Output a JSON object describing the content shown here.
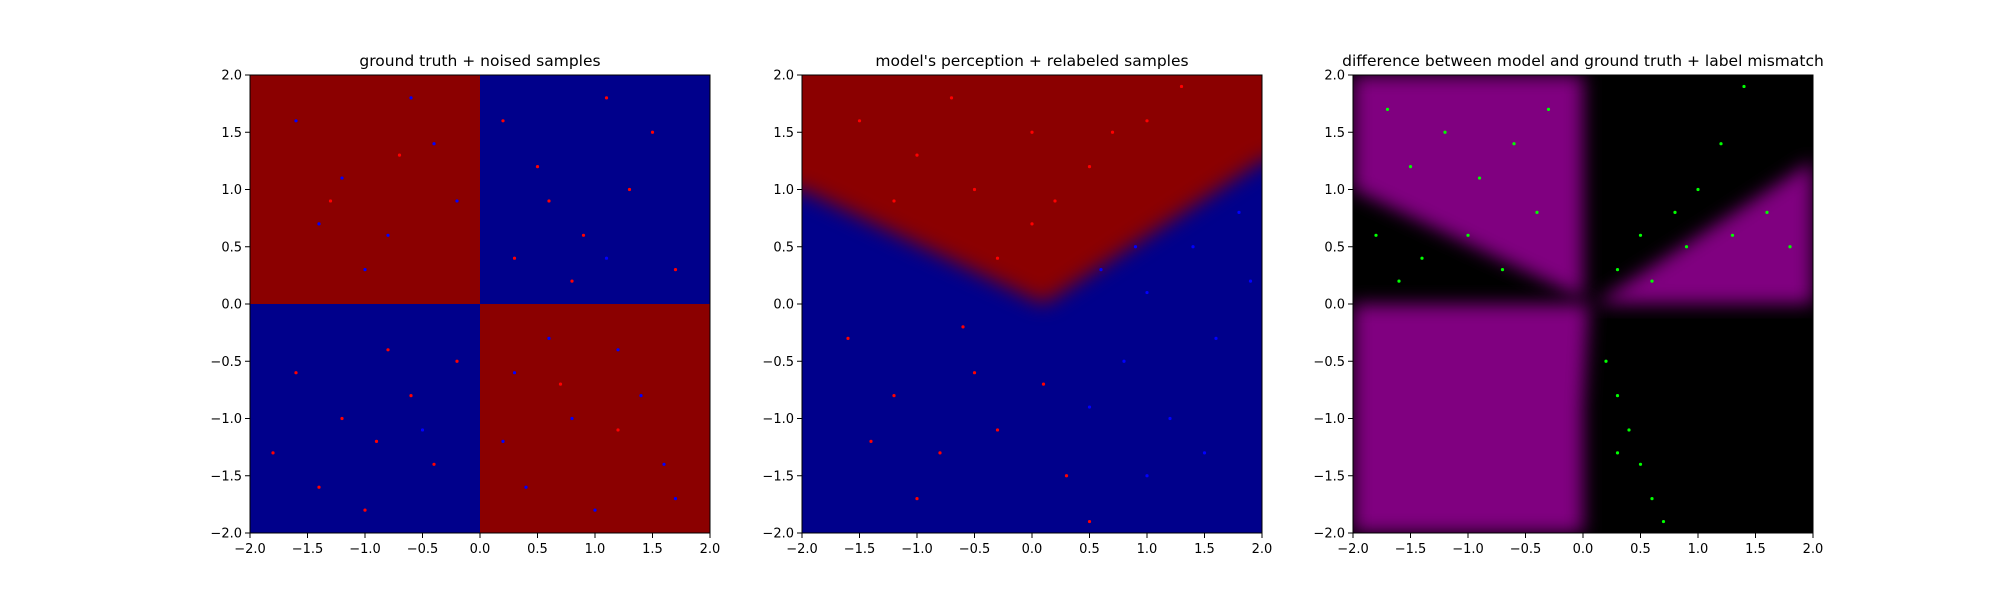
{
  "chart_data": [
    {
      "type": "scatter",
      "title": "ground truth + noised samples",
      "xlim": [
        -2.0,
        2.0
      ],
      "ylim": [
        -2.0,
        2.0
      ],
      "xticks": [
        "−2.0",
        "−1.5",
        "−1.0",
        "−0.5",
        "0.0",
        "0.5",
        "1.0",
        "1.5",
        "2.0"
      ],
      "yticks": [
        "−2.0",
        "−1.5",
        "−1.0",
        "−0.5",
        "0.0",
        "0.5",
        "1.0",
        "1.5",
        "2.0"
      ],
      "background": {
        "kind": "quadrants",
        "regions": [
          {
            "x": [
              -2.0,
              0.0
            ],
            "y": [
              0.0,
              2.0
            ],
            "color": "#8b0000"
          },
          {
            "x": [
              0.0,
              2.0
            ],
            "y": [
              0.0,
              2.0
            ],
            "color": "#00008b"
          },
          {
            "x": [
              -2.0,
              0.0
            ],
            "y": [
              -2.0,
              0.0
            ],
            "color": "#00008b"
          },
          {
            "x": [
              0.0,
              2.0
            ],
            "y": [
              -2.0,
              0.0
            ],
            "color": "#8b0000"
          }
        ]
      },
      "series": [
        {
          "color": "#ff0000",
          "points": [
            [
              0.2,
              1.6
            ],
            [
              0.5,
              1.2
            ],
            [
              0.9,
              0.6
            ],
            [
              1.3,
              1.0
            ],
            [
              1.7,
              0.3
            ],
            [
              0.3,
              0.4
            ],
            [
              1.1,
              1.8
            ],
            [
              0.6,
              0.9
            ],
            [
              1.5,
              1.5
            ],
            [
              0.8,
              0.2
            ],
            [
              -1.6,
              -0.6
            ],
            [
              -1.2,
              -1.0
            ],
            [
              -0.8,
              -0.4
            ],
            [
              -0.4,
              -1.4
            ],
            [
              -1.0,
              -1.8
            ],
            [
              -0.6,
              -0.8
            ],
            [
              -1.4,
              -1.6
            ],
            [
              -0.2,
              -0.5
            ],
            [
              -1.8,
              -1.3
            ],
            [
              -0.9,
              -1.2
            ],
            [
              -1.3,
              0.9
            ],
            [
              -0.7,
              1.3
            ],
            [
              0.7,
              -0.7
            ],
            [
              1.2,
              -1.1
            ]
          ]
        },
        {
          "color": "#0000ff",
          "points": [
            [
              -1.6,
              1.6
            ],
            [
              -1.2,
              1.1
            ],
            [
              -0.8,
              0.6
            ],
            [
              -0.4,
              1.4
            ],
            [
              -1.0,
              0.3
            ],
            [
              -0.6,
              1.8
            ],
            [
              -1.4,
              0.7
            ],
            [
              -0.2,
              0.9
            ],
            [
              0.4,
              -1.6
            ],
            [
              0.8,
              -1.0
            ],
            [
              1.2,
              -0.4
            ],
            [
              1.6,
              -1.4
            ],
            [
              0.3,
              -0.6
            ],
            [
              1.0,
              -1.8
            ],
            [
              1.4,
              -0.8
            ],
            [
              0.6,
              -0.3
            ],
            [
              1.7,
              -1.7
            ],
            [
              0.2,
              -1.2
            ],
            [
              1.1,
              0.4
            ],
            [
              -0.5,
              -1.1
            ]
          ]
        }
      ]
    },
    {
      "type": "scatter",
      "title": "model's perception + relabeled samples",
      "xlim": [
        -2.0,
        2.0
      ],
      "ylim": [
        -2.0,
        2.0
      ],
      "xticks": [
        "−2.0",
        "−1.5",
        "−1.0",
        "−0.5",
        "0.0",
        "0.5",
        "1.0",
        "1.5",
        "2.0"
      ],
      "yticks": [
        "−2.0",
        "−1.5",
        "−1.0",
        "−0.5",
        "0.0",
        "0.5",
        "1.0",
        "1.5",
        "2.0"
      ],
      "background": {
        "kind": "wedge",
        "boundary": [
          [
            -2.0,
            1.0
          ],
          [
            0.1,
            0.0
          ],
          [
            2.0,
            1.25
          ]
        ],
        "inside_color": "#8b0000",
        "outside_color": "#00008b"
      },
      "series": [
        {
          "color": "#ff0000",
          "points": [
            [
              -1.5,
              1.6
            ],
            [
              -1.0,
              1.3
            ],
            [
              -0.5,
              1.0
            ],
            [
              0.0,
              0.7
            ],
            [
              0.5,
              1.2
            ],
            [
              1.0,
              1.6
            ],
            [
              -0.3,
              0.4
            ],
            [
              0.2,
              0.9
            ],
            [
              -0.7,
              1.8
            ],
            [
              0.7,
              1.5
            ],
            [
              -1.2,
              0.9
            ],
            [
              1.3,
              1.9
            ],
            [
              0.0,
              1.5
            ],
            [
              -1.6,
              -0.3
            ],
            [
              -1.2,
              -0.8
            ],
            [
              -0.8,
              -1.3
            ],
            [
              -0.5,
              -0.6
            ],
            [
              -1.0,
              -1.7
            ],
            [
              -0.3,
              -1.1
            ],
            [
              0.1,
              -0.7
            ],
            [
              -0.6,
              -0.2
            ],
            [
              0.3,
              -1.5
            ],
            [
              -1.4,
              -1.2
            ],
            [
              0.5,
              -1.9
            ]
          ]
        },
        {
          "color": "#0000ff",
          "points": [
            [
              0.6,
              0.3
            ],
            [
              1.0,
              0.1
            ],
            [
              1.4,
              0.5
            ],
            [
              1.8,
              0.8
            ],
            [
              0.8,
              -0.5
            ],
            [
              1.2,
              -1.0
            ],
            [
              1.6,
              -0.3
            ],
            [
              0.5,
              -0.9
            ],
            [
              1.0,
              -1.5
            ],
            [
              1.5,
              -1.3
            ],
            [
              0.9,
              0.5
            ],
            [
              1.9,
              0.2
            ]
          ]
        }
      ]
    },
    {
      "type": "scatter",
      "title": "difference between model and ground truth + label mismatch",
      "xlim": [
        -2.0,
        2.0
      ],
      "ylim": [
        -2.0,
        2.0
      ],
      "xticks": [
        "−2.0",
        "−1.5",
        "−1.0",
        "−0.5",
        "0.0",
        "0.5",
        "1.0",
        "1.5",
        "2.0"
      ],
      "yticks": [
        "−2.0",
        "−1.5",
        "−1.0",
        "−0.5",
        "0.0",
        "0.5",
        "1.0",
        "1.5",
        "2.0"
      ],
      "background": {
        "kind": "mismatch",
        "mismatch_color": "#800080",
        "match_color": "#000000"
      },
      "series": [
        {
          "color": "#00ff00",
          "points": [
            [
              -1.7,
              1.7
            ],
            [
              -1.5,
              1.2
            ],
            [
              -1.2,
              1.5
            ],
            [
              -0.9,
              1.1
            ],
            [
              -0.6,
              1.4
            ],
            [
              -0.3,
              1.7
            ],
            [
              -1.8,
              0.6
            ],
            [
              -1.4,
              0.4
            ],
            [
              -1.0,
              0.6
            ],
            [
              -0.7,
              0.3
            ],
            [
              -0.4,
              0.8
            ],
            [
              -1.6,
              0.2
            ],
            [
              0.3,
              0.3
            ],
            [
              0.5,
              0.6
            ],
            [
              0.8,
              0.8
            ],
            [
              1.0,
              1.0
            ],
            [
              1.2,
              1.4
            ],
            [
              1.4,
              1.9
            ],
            [
              0.6,
              0.2
            ],
            [
              0.9,
              0.5
            ],
            [
              1.3,
              0.6
            ],
            [
              1.6,
              0.8
            ],
            [
              1.8,
              0.5
            ],
            [
              0.2,
              -0.5
            ],
            [
              0.3,
              -0.8
            ],
            [
              0.4,
              -1.1
            ],
            [
              0.5,
              -1.4
            ],
            [
              0.6,
              -1.7
            ],
            [
              0.7,
              -1.9
            ],
            [
              0.3,
              -1.3
            ]
          ]
        }
      ]
    }
  ]
}
